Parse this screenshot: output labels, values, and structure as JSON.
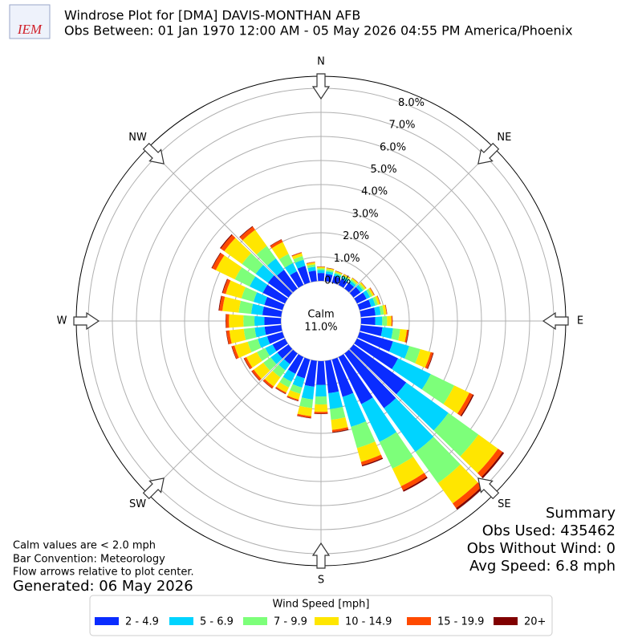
{
  "chart_data": {
    "type": "windrose",
    "logo_text": "IEM",
    "title": "Windrose Plot for [DMA] DAVIS-MONTHAN AFB",
    "subtitle": "Obs Between: 01 Jan 1970 12:00 AM - 05 May 2026 04:55 PM America/Phoenix",
    "compass": [
      "N",
      "NE",
      "E",
      "SE",
      "S",
      "SW",
      "W",
      "NW"
    ],
    "x": [
      0,
      10,
      20,
      30,
      40,
      50,
      60,
      70,
      80,
      90,
      100,
      110,
      120,
      130,
      140,
      150,
      160,
      170,
      180,
      190,
      200,
      210,
      220,
      230,
      240,
      250,
      260,
      270,
      280,
      290,
      300,
      310,
      320,
      330,
      340,
      350
    ],
    "ylim": [
      0,
      8.5
    ],
    "yticks": [
      {
        "value": 0,
        "label": "0.0%"
      },
      {
        "value": 1,
        "label": "1.0%"
      },
      {
        "value": 2,
        "label": "2.0%"
      },
      {
        "value": 3,
        "label": "3.0%"
      },
      {
        "value": 4,
        "label": "4.0%"
      },
      {
        "value": 5,
        "label": "5.0%"
      },
      {
        "value": 6,
        "label": "6.0%"
      },
      {
        "value": 7,
        "label": "7.0%"
      },
      {
        "value": 8,
        "label": "8.0%"
      }
    ],
    "grid": true,
    "calm_label": "Calm",
    "calm_value": 11.0,
    "calm_value_label": "11.0%",
    "legend_title": "Wind Speed [mph]",
    "series": [
      {
        "name": "2 - 4.9",
        "color": "#0a2cff",
        "values": [
          0.33,
          0.3,
          0.28,
          0.28,
          0.3,
          0.36,
          0.44,
          0.5,
          0.61,
          0.59,
          0.9,
          1.44,
          1.89,
          2.7,
          2.8,
          2.17,
          1.61,
          1.35,
          0.99,
          1.08,
          0.81,
          0.77,
          0.54,
          0.57,
          0.57,
          0.66,
          0.69,
          0.69,
          0.78,
          0.78,
          1.02,
          1.05,
          0.96,
          0.63,
          0.72,
          0.44
        ]
      },
      {
        "name": "5 - 6.9",
        "color": "#00d4ff",
        "values": [
          0.12,
          0.11,
          0.1,
          0.1,
          0.11,
          0.13,
          0.16,
          0.18,
          0.22,
          0.29,
          0.44,
          0.7,
          1.51,
          2.16,
          2.24,
          1.74,
          1.29,
          0.66,
          0.48,
          0.53,
          0.4,
          0.37,
          0.32,
          0.34,
          0.34,
          0.4,
          0.41,
          0.41,
          0.47,
          0.47,
          0.61,
          0.63,
          0.58,
          0.38,
          0.26,
          0.16
        ]
      },
      {
        "name": "7 - 9.9",
        "color": "#7dff7a",
        "values": [
          0.07,
          0.07,
          0.06,
          0.06,
          0.07,
          0.08,
          0.1,
          0.11,
          0.13,
          0.2,
          0.3,
          0.48,
          1.08,
          1.54,
          1.6,
          1.24,
          0.92,
          0.45,
          0.33,
          0.36,
          0.27,
          0.26,
          0.36,
          0.38,
          0.38,
          0.44,
          0.46,
          0.46,
          0.52,
          0.52,
          0.68,
          0.7,
          0.64,
          0.42,
          0.16,
          0.1
        ]
      },
      {
        "name": "10 - 14.9",
        "color": "#ffe600",
        "values": [
          0.06,
          0.06,
          0.05,
          0.05,
          0.06,
          0.07,
          0.08,
          0.09,
          0.11,
          0.18,
          0.28,
          0.45,
          0.7,
          1.0,
          1.04,
          0.81,
          0.6,
          0.42,
          0.31,
          0.34,
          0.25,
          0.24,
          0.47,
          0.49,
          0.49,
          0.57,
          0.6,
          0.6,
          0.68,
          0.68,
          0.88,
          0.91,
          0.83,
          0.55,
          0.13,
          0.08
        ]
      },
      {
        "name": "15 - 19.9",
        "color": "#ff4a00",
        "values": [
          0.01,
          0.01,
          0.01,
          0.01,
          0.01,
          0.01,
          0.02,
          0.02,
          0.02,
          0.04,
          0.06,
          0.1,
          0.16,
          0.23,
          0.24,
          0.19,
          0.14,
          0.09,
          0.07,
          0.07,
          0.05,
          0.05,
          0.09,
          0.1,
          0.1,
          0.11,
          0.12,
          0.12,
          0.13,
          0.13,
          0.17,
          0.18,
          0.16,
          0.11,
          0.03,
          0.02
        ]
      },
      {
        "name": "20+",
        "color": "#800000",
        "values": [
          0.01,
          0.01,
          0.01,
          0.01,
          0.01,
          0.01,
          0.01,
          0.01,
          0.01,
          0.01,
          0.02,
          0.03,
          0.05,
          0.08,
          0.08,
          0.06,
          0.05,
          0.03,
          0.02,
          0.02,
          0.02,
          0.02,
          0.02,
          0.02,
          0.02,
          0.02,
          0.02,
          0.02,
          0.03,
          0.03,
          0.03,
          0.04,
          0.03,
          0.02,
          0.01,
          0.01
        ]
      }
    ],
    "summary": [
      "Summary",
      "Obs Used: 435462",
      "Obs Without Wind: 0",
      "Avg Speed: 6.8 mph"
    ],
    "notes": [
      "Calm values are < 2.0 mph",
      "Bar Convention: Meteorology",
      "Flow arrows relative to plot center."
    ],
    "generated": "Generated: 06 May 2026"
  }
}
